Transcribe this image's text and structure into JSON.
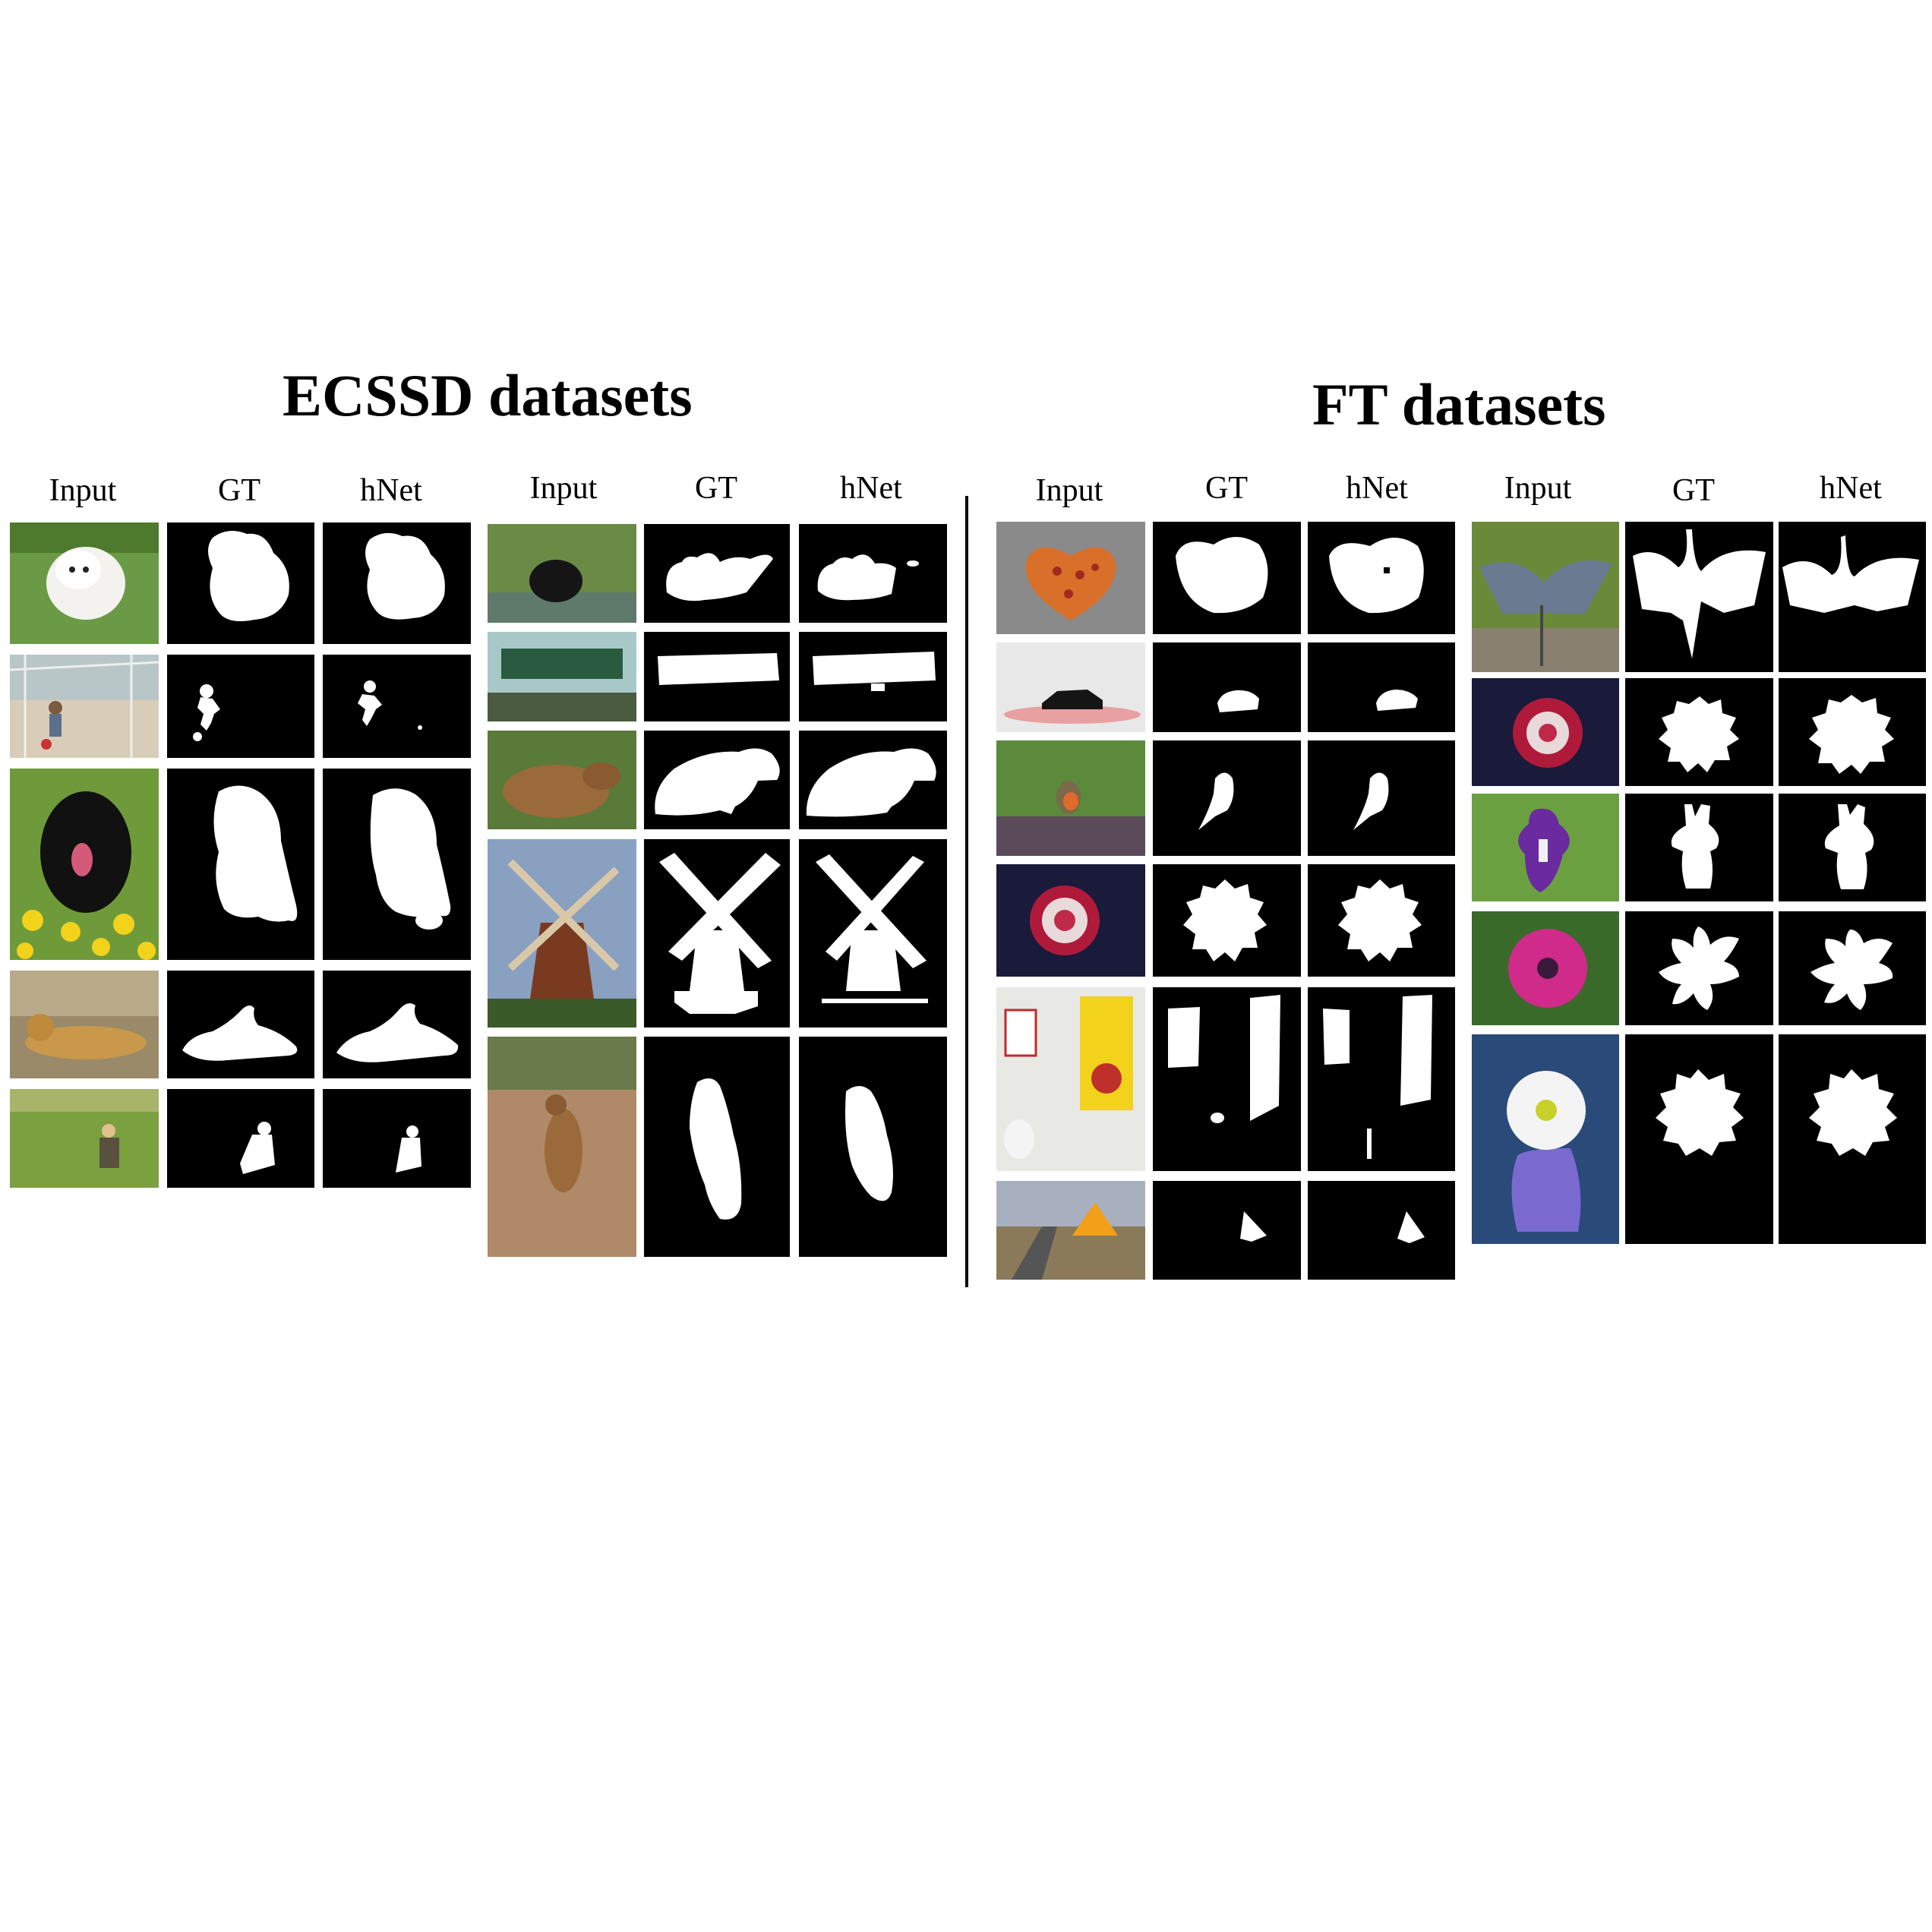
{
  "titles": {
    "ecssd": "ECSSD datasets",
    "ft": "FT datasets"
  },
  "column_headers": {
    "input": "Input",
    "gt": "GT",
    "hnet": "hNet"
  },
  "colors": {
    "mask_background": "#000000",
    "mask_foreground": "#ffffff",
    "page_background": "#ffffff"
  },
  "ecssd_samples_left": [
    "white-dog",
    "boy-kicking-ball",
    "black-dog-in-flowers",
    "lion-lying",
    "person-with-dog-in-field"
  ],
  "ecssd_samples_right": [
    "bear-cub",
    "street-sign",
    "capybara",
    "windmill",
    "ground-squirrel"
  ],
  "ft_samples_left": [
    "heart-pizza",
    "black-car",
    "robin-bird",
    "dahlia-flower",
    "caution-radiation-sign",
    "road-warning-sign"
  ],
  "ft_samples_right": [
    "heron",
    "red-white-dahlia",
    "purple-iris",
    "pink-daisy",
    "white-daisy-in-vase"
  ]
}
